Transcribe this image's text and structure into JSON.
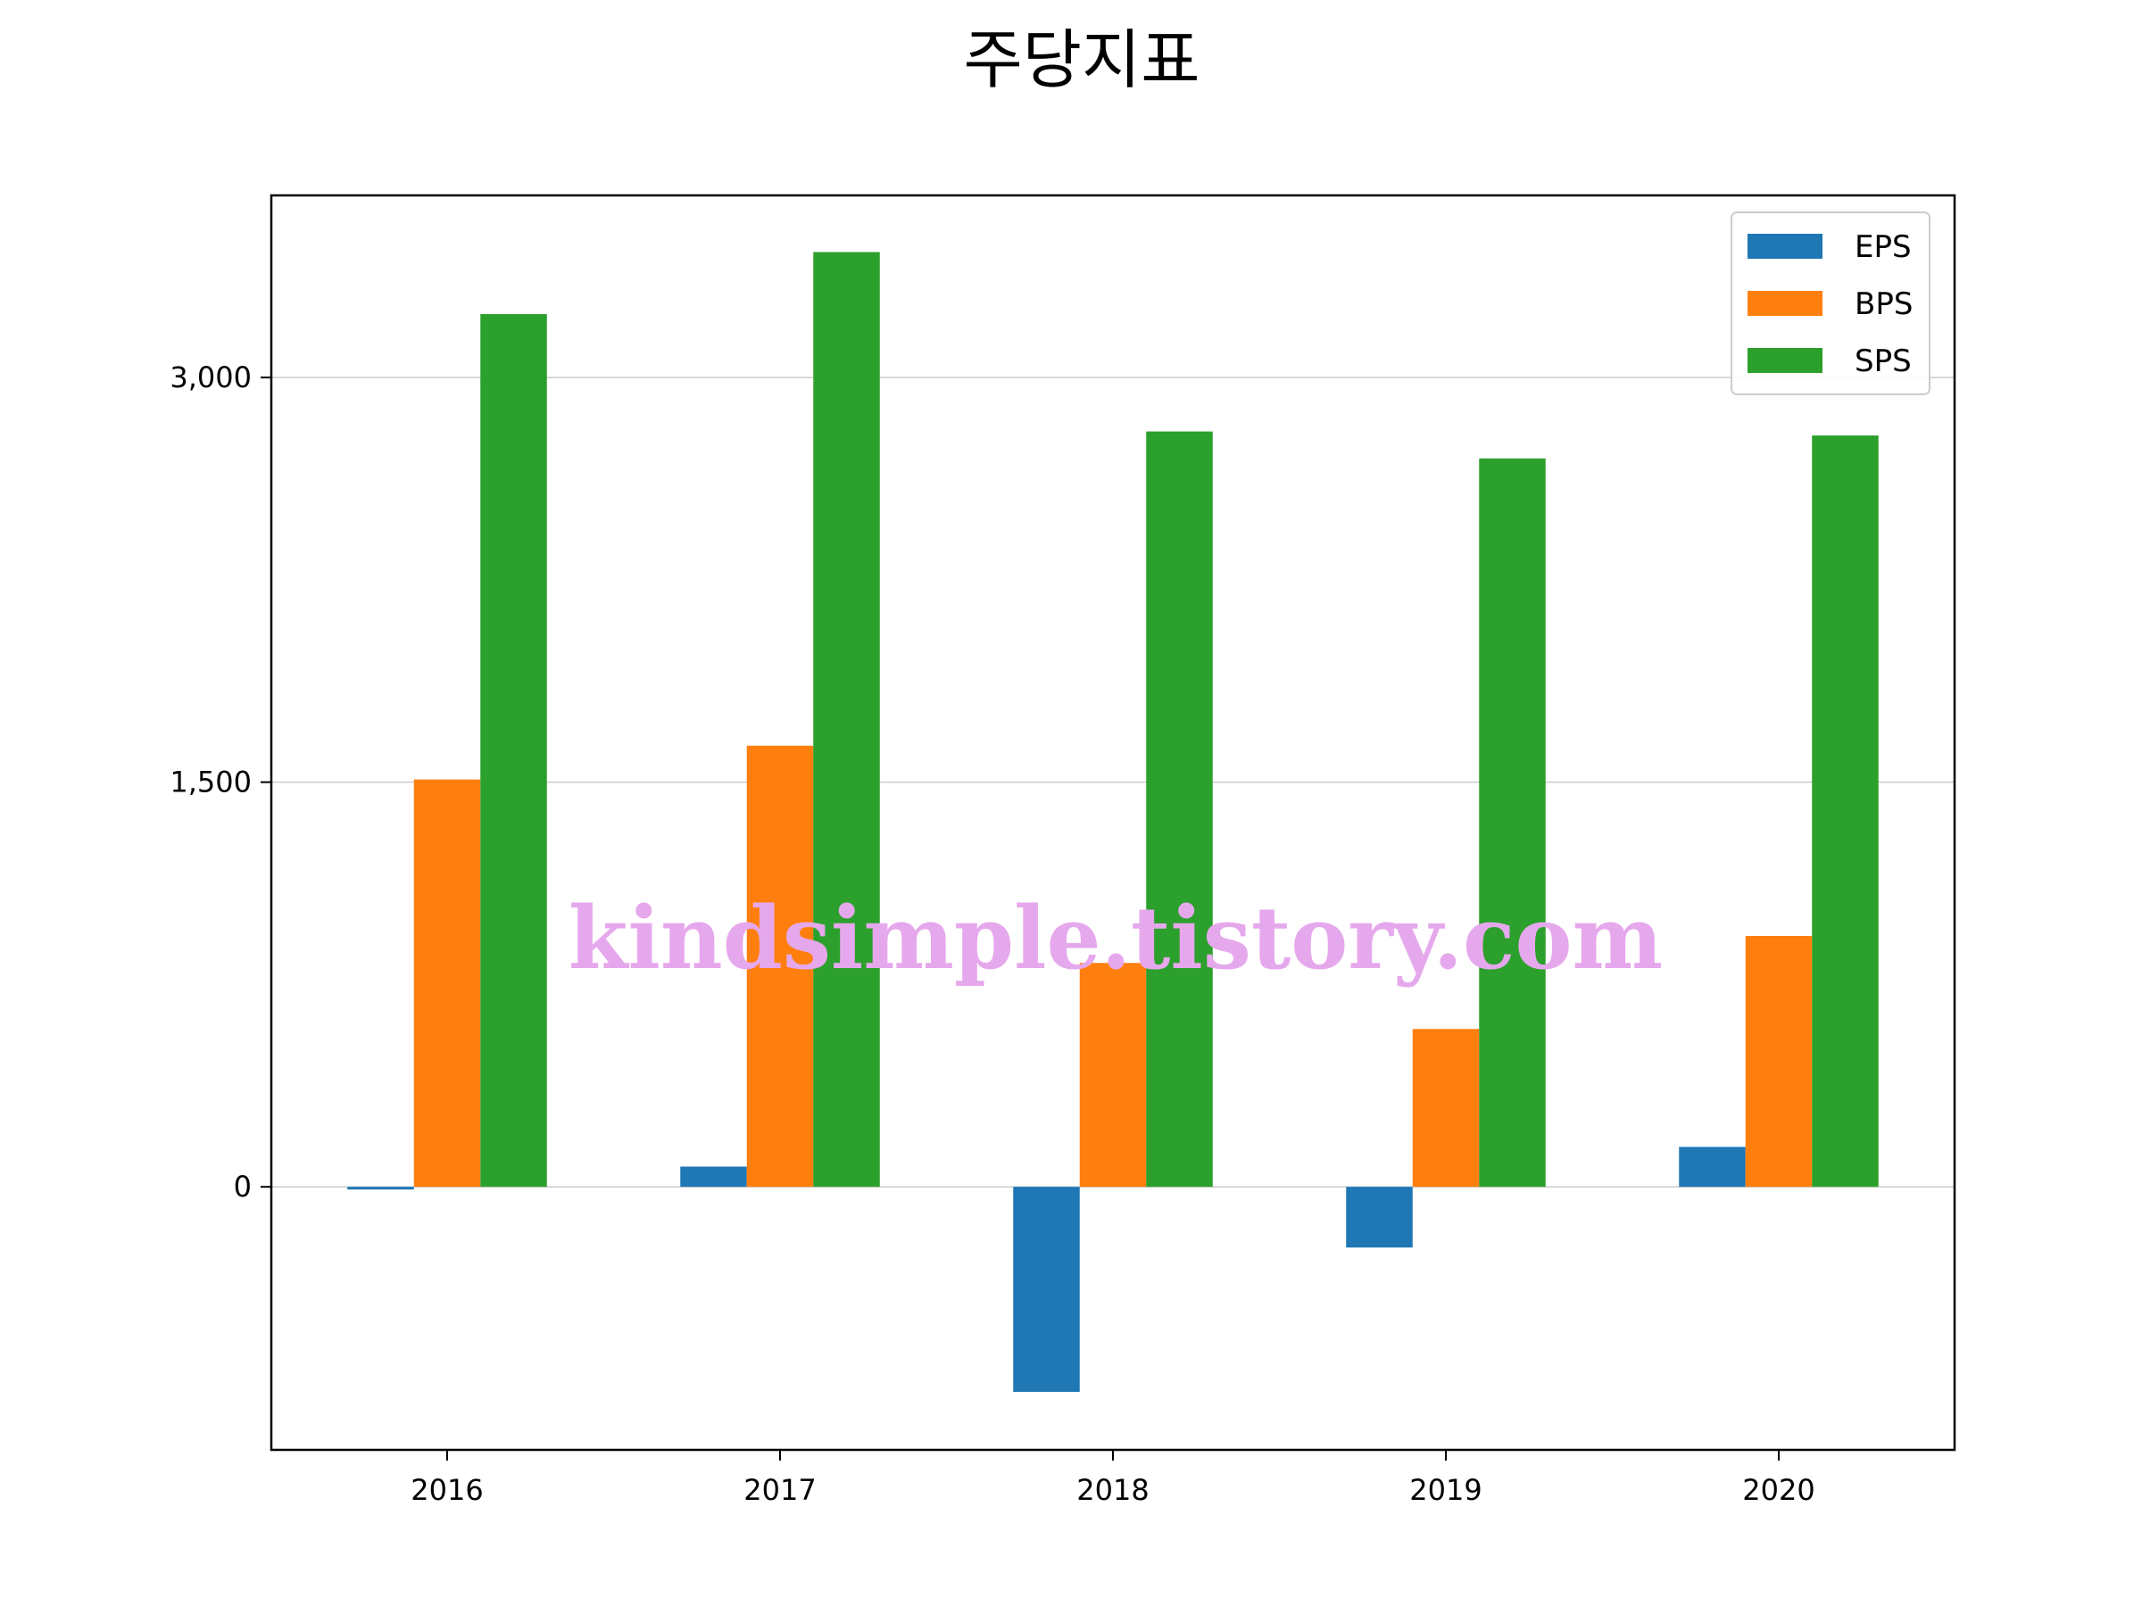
{
  "chart_data": {
    "type": "bar",
    "title": "주당지표",
    "categories": [
      "2016",
      "2017",
      "2018",
      "2019",
      "2020"
    ],
    "series": [
      {
        "name": "EPS",
        "color": "#1f77b4",
        "values": [
          -10,
          75,
          -760,
          -225,
          148
        ]
      },
      {
        "name": "BPS",
        "color": "#ff7f0e",
        "values": [
          1510,
          1635,
          830,
          585,
          930
        ]
      },
      {
        "name": "SPS",
        "color": "#2ca02c",
        "values": [
          3235,
          3465,
          2800,
          2700,
          2785
        ]
      }
    ],
    "ylim": [
      -975,
      3675
    ],
    "yticks": [
      0,
      1500,
      3000
    ],
    "ytick_labels": [
      "0",
      "1,500",
      "3,000"
    ],
    "grid": "y",
    "legend": "top-right",
    "xlabel": "",
    "ylabel": ""
  },
  "watermark": "kindsimple.tistory.com"
}
